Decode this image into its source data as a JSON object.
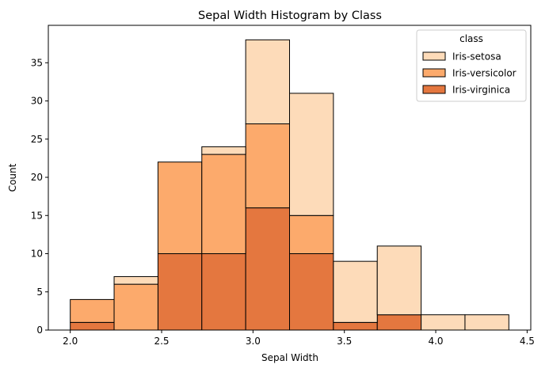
{
  "chart_data": {
    "type": "bar",
    "stacked": true,
    "title": "Sepal Width Histogram by Class",
    "xlabel": "Sepal Width",
    "ylabel": "Count",
    "xlim": [
      1.88,
      4.52
    ],
    "ylim": [
      0,
      39.9
    ],
    "bin_edges": [
      2.0,
      2.24,
      2.48,
      2.72,
      2.96,
      3.2,
      3.44,
      3.68,
      3.92,
      4.16,
      4.4
    ],
    "x_ticks": [
      2.0,
      2.5,
      3.0,
      3.5,
      4.0,
      4.5
    ],
    "x_tick_labels": [
      "2.0",
      "2.5",
      "3.0",
      "3.5",
      "4.0",
      "4.5"
    ],
    "y_ticks": [
      0,
      5,
      10,
      15,
      20,
      25,
      30,
      35
    ],
    "y_tick_labels": [
      "0",
      "5",
      "10",
      "15",
      "20",
      "25",
      "30",
      "35"
    ],
    "legend_title": "class",
    "legend_position": "top-right",
    "series": [
      {
        "name": "Iris-virginica",
        "color": "#e4773f",
        "values": [
          1,
          0,
          10,
          10,
          16,
          10,
          1,
          2,
          0,
          0
        ]
      },
      {
        "name": "Iris-versicolor",
        "color": "#fcaa6c",
        "values": [
          3,
          6,
          12,
          13,
          11,
          5,
          0,
          0,
          0,
          0
        ]
      },
      {
        "name": "Iris-setosa",
        "color": "#fddbb9",
        "values": [
          0,
          1,
          0,
          1,
          11,
          16,
          8,
          9,
          2,
          2
        ]
      }
    ],
    "legend_order": [
      "Iris-setosa",
      "Iris-versicolor",
      "Iris-virginica"
    ]
  }
}
